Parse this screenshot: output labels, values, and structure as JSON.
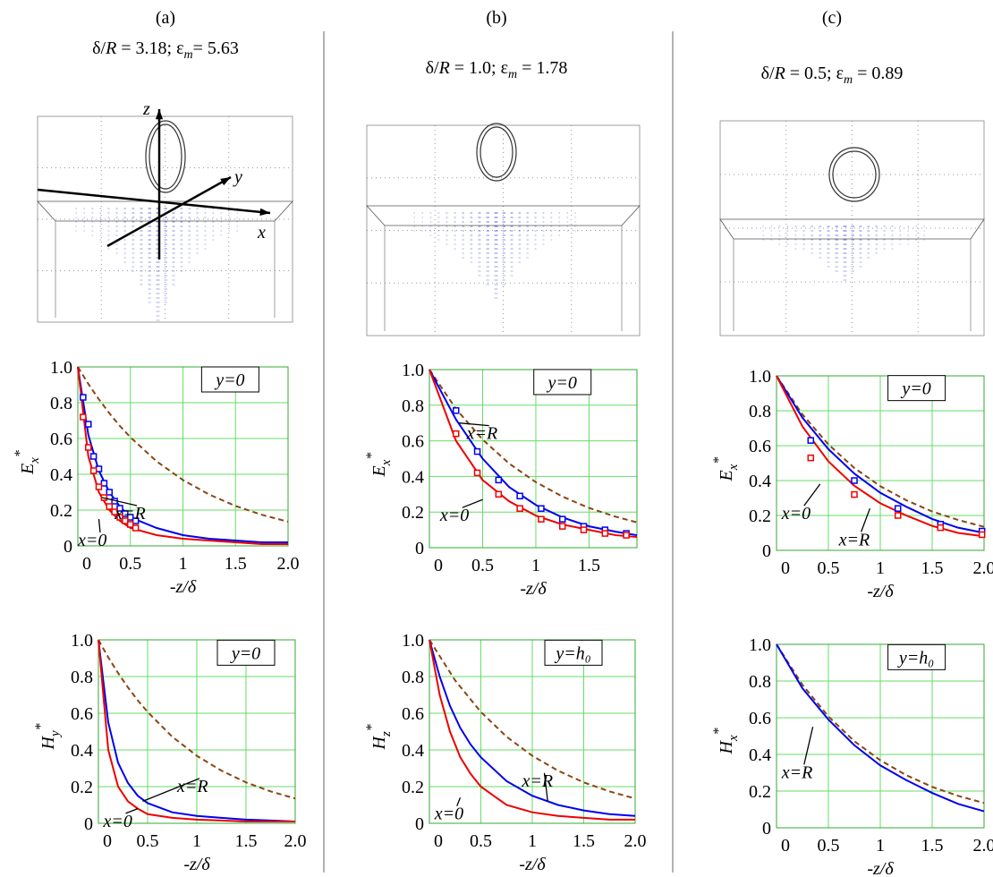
{
  "panels": [
    {
      "label": "(a)",
      "d_part": "δ/",
      "r_part": "R",
      "d_value": " = 3.18; ε",
      "eps_sub": "m",
      "eps_value": "= 5.63",
      "axes": [
        "z",
        "y",
        "x"
      ]
    },
    {
      "label": "(b)",
      "d_part": "δ/",
      "r_part": "R",
      "d_value": " = 1.0; ε",
      "eps_sub": "m",
      "eps_value": " = 1.78"
    },
    {
      "label": "(c)",
      "d_part": "δ/",
      "r_part": "R",
      "d_value": " = 0.5; ε",
      "eps_sub": "m",
      "eps_value": " = 0.89"
    }
  ],
  "chart_data": [
    {
      "type": "line",
      "ylabel": "E",
      "ylabel_sub": "x",
      "ylabel_sup": "*",
      "xlabel": "-z/δ",
      "condition": "y=0",
      "annotations": [
        "x=R",
        "x=0"
      ],
      "xlim": [
        0,
        2
      ],
      "ylim": [
        0,
        1
      ],
      "xticks": [
        0,
        0.5,
        1,
        1.5,
        {
          "value": 2,
          "label": "2.0"
        }
      ],
      "yticks": [
        0,
        0.2,
        0.4,
        0.6,
        0.8,
        {
          "value": 1,
          "label": "1.0"
        }
      ],
      "grid": true,
      "series": [
        {
          "color": "#8b4513",
          "style": "dashed",
          "x": [
            0,
            0.1,
            0.2,
            0.3,
            0.4,
            0.5,
            0.75,
            1,
            1.25,
            1.5,
            1.75,
            2
          ],
          "values": [
            1,
            0.905,
            0.819,
            0.741,
            0.67,
            0.607,
            0.472,
            0.368,
            0.287,
            0.223,
            0.174,
            0.135
          ]
        },
        {
          "color": "#0000ee",
          "style": "solid",
          "x": [
            0,
            0.1,
            0.2,
            0.3,
            0.4,
            0.5,
            0.75,
            1,
            1.25,
            1.5,
            1.75,
            2
          ],
          "values": [
            1,
            0.62,
            0.42,
            0.3,
            0.22,
            0.16,
            0.1,
            0.06,
            0.04,
            0.03,
            0.02,
            0.02
          ]
        },
        {
          "color": "#ee0000",
          "style": "solid",
          "x": [
            0,
            0.1,
            0.2,
            0.3,
            0.4,
            0.5,
            0.75,
            1,
            1.25,
            1.5,
            1.75,
            2
          ],
          "values": [
            1,
            0.5,
            0.3,
            0.2,
            0.14,
            0.1,
            0.06,
            0.04,
            0.03,
            0.02,
            0.01,
            0.01
          ]
        },
        {
          "color": "#0000ee",
          "style": "markers",
          "x": [
            0.05,
            0.1,
            0.15,
            0.2,
            0.25,
            0.3,
            0.35,
            0.4,
            0.45,
            0.5,
            0.55
          ],
          "values": [
            0.83,
            0.68,
            0.5,
            0.43,
            0.35,
            0.3,
            0.25,
            0.21,
            0.18,
            0.16,
            0.14
          ]
        },
        {
          "color": "#ee0000",
          "style": "markers",
          "x": [
            0.05,
            0.1,
            0.15,
            0.2,
            0.25,
            0.3,
            0.35,
            0.4,
            0.45,
            0.5,
            0.55
          ],
          "values": [
            0.72,
            0.55,
            0.42,
            0.33,
            0.27,
            0.22,
            0.19,
            0.16,
            0.14,
            0.12,
            0.1
          ]
        }
      ]
    },
    {
      "type": "line",
      "ylabel": "E",
      "ylabel_sub": "x",
      "ylabel_sup": "*",
      "xlabel": "-z/δ",
      "condition": "y=0",
      "annotations": [
        "x=R",
        "x=0"
      ],
      "xlim": [
        0,
        1.95
      ],
      "ylim": [
        0,
        1
      ],
      "xticks": [
        0,
        0.5,
        1,
        1.5
      ],
      "yticks": [
        0,
        0.2,
        0.4,
        0.6,
        0.8,
        {
          "value": 1,
          "label": "1.0"
        }
      ],
      "grid": true,
      "series": [
        {
          "color": "#8b4513",
          "style": "dashed",
          "x": [
            0,
            0.25,
            0.5,
            0.75,
            1,
            1.25,
            1.5,
            1.75,
            1.95
          ],
          "values": [
            1,
            0.779,
            0.607,
            0.472,
            0.368,
            0.287,
            0.223,
            0.174,
            0.142
          ]
        },
        {
          "color": "#0000ee",
          "style": "solid",
          "x": [
            0,
            0.25,
            0.5,
            0.75,
            1,
            1.25,
            1.5,
            1.75,
            1.95
          ],
          "values": [
            1,
            0.72,
            0.5,
            0.34,
            0.24,
            0.17,
            0.12,
            0.09,
            0.07
          ]
        },
        {
          "color": "#ee0000",
          "style": "solid",
          "x": [
            0,
            0.25,
            0.5,
            0.75,
            1,
            1.25,
            1.5,
            1.75,
            1.95
          ],
          "values": [
            1,
            0.6,
            0.38,
            0.26,
            0.18,
            0.13,
            0.1,
            0.07,
            0.06
          ]
        },
        {
          "color": "#0000ee",
          "style": "markers",
          "x": [
            0.25,
            0.45,
            0.65,
            0.85,
            1.05,
            1.25,
            1.45,
            1.65,
            1.85
          ],
          "values": [
            0.77,
            0.54,
            0.38,
            0.29,
            0.22,
            0.16,
            0.12,
            0.1,
            0.08
          ]
        },
        {
          "color": "#ee0000",
          "style": "markers",
          "x": [
            0.25,
            0.45,
            0.65,
            0.85,
            1.05,
            1.25,
            1.45,
            1.65,
            1.85
          ],
          "values": [
            0.64,
            0.42,
            0.3,
            0.22,
            0.16,
            0.12,
            0.1,
            0.08,
            0.07
          ]
        }
      ]
    },
    {
      "type": "line",
      "ylabel": "E",
      "ylabel_sub": "x",
      "ylabel_sup": "*",
      "xlabel": "-z/δ",
      "condition": "y=0",
      "annotations": [
        "x=0",
        "x=R"
      ],
      "xlim": [
        0,
        2
      ],
      "ylim": [
        0,
        1
      ],
      "xticks": [
        0,
        0.5,
        1,
        1.5,
        {
          "value": 2,
          "label": "2.0"
        }
      ],
      "yticks": [
        0,
        0.2,
        0.4,
        0.6,
        0.8,
        {
          "value": 1,
          "label": "1.0"
        }
      ],
      "grid": true,
      "series": [
        {
          "color": "#8b4513",
          "style": "dashed",
          "x": [
            0,
            0.25,
            0.5,
            0.75,
            1,
            1.25,
            1.5,
            1.75,
            2
          ],
          "values": [
            1,
            0.779,
            0.607,
            0.472,
            0.368,
            0.287,
            0.223,
            0.174,
            0.135
          ]
        },
        {
          "color": "#0000ee",
          "style": "solid",
          "x": [
            0,
            0.25,
            0.5,
            0.75,
            1,
            1.25,
            1.5,
            1.75,
            2
          ],
          "values": [
            1,
            0.76,
            0.58,
            0.44,
            0.33,
            0.25,
            0.18,
            0.13,
            0.1
          ]
        },
        {
          "color": "#ee0000",
          "style": "solid",
          "x": [
            0,
            0.25,
            0.5,
            0.75,
            1,
            1.25,
            1.5,
            1.75,
            2
          ],
          "values": [
            1,
            0.71,
            0.51,
            0.37,
            0.27,
            0.2,
            0.14,
            0.1,
            0.08
          ]
        },
        {
          "color": "#0000ee",
          "style": "markers",
          "x": [
            0.33,
            0.75,
            1.17,
            1.58,
            1.98
          ],
          "values": [
            0.63,
            0.4,
            0.24,
            0.15,
            0.11
          ]
        },
        {
          "color": "#ee0000",
          "style": "markers",
          "x": [
            0.33,
            0.75,
            1.17,
            1.58,
            1.98
          ],
          "values": [
            0.53,
            0.32,
            0.2,
            0.13,
            0.09
          ]
        }
      ]
    },
    {
      "type": "line",
      "ylabel": "H",
      "ylabel_sub": "y",
      "ylabel_sup": "*",
      "xlabel": "-z/δ",
      "condition": "y=0",
      "annotations": [
        "x=R",
        "x=0"
      ],
      "xlim": [
        0,
        2
      ],
      "ylim": [
        0,
        1
      ],
      "xticks": [
        0,
        0.5,
        1,
        1.5,
        {
          "value": 2,
          "label": "2.0"
        }
      ],
      "yticks": [
        0,
        0.2,
        0.4,
        0.6,
        0.8,
        {
          "value": 1,
          "label": "1.0"
        }
      ],
      "grid": true,
      "series": [
        {
          "color": "#8b4513",
          "style": "dashed",
          "x": [
            0,
            0.1,
            0.2,
            0.3,
            0.4,
            0.5,
            0.75,
            1,
            1.25,
            1.5,
            1.75,
            2
          ],
          "values": [
            1,
            0.905,
            0.819,
            0.741,
            0.67,
            0.607,
            0.472,
            0.368,
            0.287,
            0.223,
            0.174,
            0.135
          ]
        },
        {
          "color": "#0000ee",
          "style": "solid",
          "x": [
            0,
            0.1,
            0.2,
            0.3,
            0.4,
            0.5,
            0.75,
            1,
            1.25,
            1.5,
            1.75,
            2
          ],
          "values": [
            1,
            0.55,
            0.33,
            0.22,
            0.15,
            0.11,
            0.06,
            0.04,
            0.03,
            0.02,
            0.015,
            0.01
          ]
        },
        {
          "color": "#ee0000",
          "style": "solid",
          "x": [
            0,
            0.1,
            0.2,
            0.3,
            0.4,
            0.5,
            0.75,
            1,
            1.25,
            1.5,
            1.75,
            2
          ],
          "values": [
            1,
            0.4,
            0.2,
            0.12,
            0.08,
            0.05,
            0.03,
            0.02,
            0.015,
            0.01,
            0.01,
            0.01
          ]
        }
      ]
    },
    {
      "type": "line",
      "ylabel": "H",
      "ylabel_sub": "z",
      "ylabel_sup": "*",
      "xlabel": "-z/δ",
      "condition": "y=h₀",
      "annotations": [
        "x=R",
        "x=0"
      ],
      "xlim": [
        0,
        2
      ],
      "ylim": [
        0,
        1
      ],
      "xticks": [
        0,
        0.5,
        1,
        1.5,
        {
          "value": 2,
          "label": "2.0"
        }
      ],
      "yticks": [
        0,
        0.2,
        0.4,
        0.6,
        0.8,
        {
          "value": 1,
          "label": "1.0"
        }
      ],
      "grid": true,
      "series": [
        {
          "color": "#8b4513",
          "style": "dashed",
          "x": [
            0,
            0.25,
            0.5,
            0.75,
            1,
            1.25,
            1.5,
            1.75,
            2
          ],
          "values": [
            1,
            0.779,
            0.607,
            0.472,
            0.368,
            0.287,
            0.223,
            0.174,
            0.135
          ]
        },
        {
          "color": "#0000ee",
          "style": "solid",
          "x": [
            0,
            0.1,
            0.2,
            0.3,
            0.4,
            0.5,
            0.75,
            1,
            1.25,
            1.5,
            1.75,
            2
          ],
          "values": [
            1,
            0.8,
            0.64,
            0.52,
            0.43,
            0.36,
            0.23,
            0.15,
            0.1,
            0.07,
            0.05,
            0.04
          ]
        },
        {
          "color": "#ee0000",
          "style": "solid",
          "x": [
            0,
            0.1,
            0.2,
            0.3,
            0.4,
            0.5,
            0.75,
            1,
            1.25,
            1.5,
            1.75,
            2
          ],
          "values": [
            1,
            0.7,
            0.5,
            0.36,
            0.27,
            0.2,
            0.1,
            0.06,
            0.04,
            0.03,
            0.02,
            0.02
          ]
        }
      ]
    },
    {
      "type": "line",
      "ylabel": "H",
      "ylabel_sub": "x",
      "ylabel_sup": "*",
      "xlabel": "-z/δ",
      "condition": "y=h₀",
      "annotations": [
        "x=R"
      ],
      "xlim": [
        0,
        2
      ],
      "ylim": [
        0,
        1
      ],
      "xticks": [
        0,
        0.5,
        1,
        1.5,
        {
          "value": 2,
          "label": "2.0"
        }
      ],
      "yticks": [
        0,
        0.2,
        0.4,
        0.6,
        0.8,
        {
          "value": 1,
          "label": "1.0"
        }
      ],
      "grid": true,
      "series": [
        {
          "color": "#8b4513",
          "style": "dashed",
          "x": [
            0,
            0.25,
            0.5,
            0.75,
            1,
            1.25,
            1.5,
            1.75,
            2
          ],
          "values": [
            1,
            0.779,
            0.607,
            0.472,
            0.368,
            0.287,
            0.223,
            0.174,
            0.135
          ]
        },
        {
          "color": "#0000ee",
          "style": "solid",
          "x": [
            0,
            0.25,
            0.5,
            0.75,
            1,
            1.25,
            1.5,
            1.75,
            2
          ],
          "values": [
            1,
            0.76,
            0.59,
            0.45,
            0.34,
            0.26,
            0.19,
            0.13,
            0.09
          ]
        }
      ]
    }
  ]
}
